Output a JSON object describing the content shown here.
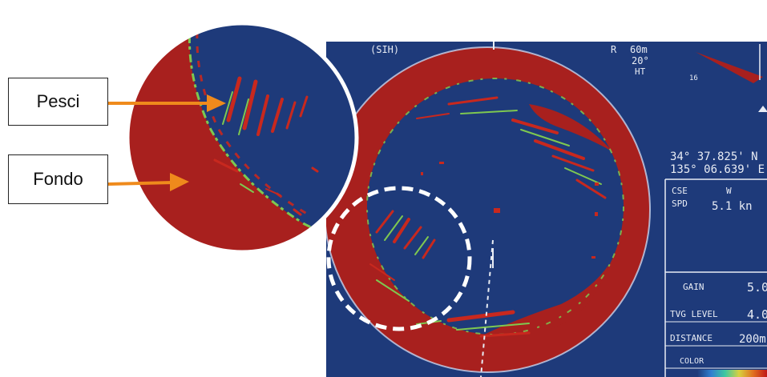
{
  "callouts": {
    "fish_label": "Pesci",
    "bottom_label": "Fondo"
  },
  "sonar": {
    "mode": "(SIH)",
    "range_prefix": "R",
    "range_value": "60m",
    "tilt_value": "20°",
    "tilt_suffix": "HT",
    "compass_mark": "16",
    "position_lat": "34° 37.825' N",
    "position_lon": "135° 06.639' E",
    "course_label": "CSE",
    "course_value": "W",
    "speed_label": "SPD",
    "speed_value": "5.1 kn",
    "gain_label": "GAIN",
    "gain_value": "5.0",
    "tvg_label": "TVG LEVEL",
    "tvg_value": "4.0",
    "distance_label": "DISTANCE",
    "distance_value": "200m",
    "color_label": "COLOR"
  },
  "colors": {
    "water": "#1e3a7a",
    "bottom": "#a8201e",
    "echo": "#c8281e",
    "echo_edge": "#7ec850",
    "arrow": "#ef8a1c"
  }
}
